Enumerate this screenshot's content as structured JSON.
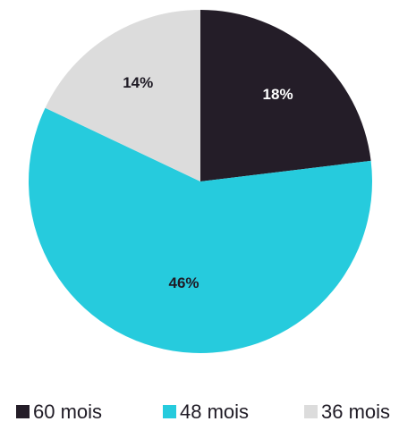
{
  "chart_data": {
    "type": "pie",
    "slices": [
      {
        "label": "60 mois",
        "value": 18,
        "display": "18%",
        "color": "#241d28",
        "label_color": "#ffffff"
      },
      {
        "label": "48 mois",
        "value": 46,
        "display": "46%",
        "color": "#26cbdd",
        "label_color": "#1f1b25"
      },
      {
        "label": "36 mois",
        "value": 14,
        "display": "14%",
        "color": "#dcdcdc",
        "label_color": "#1f1b25"
      }
    ],
    "legend_position": "bottom",
    "start": "top, clockwise"
  }
}
